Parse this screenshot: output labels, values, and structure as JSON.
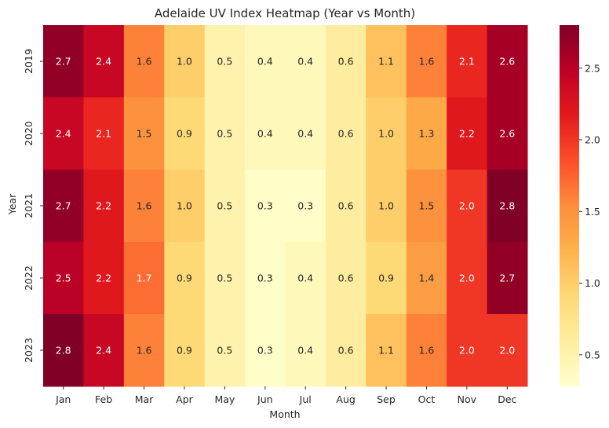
{
  "chart_data": {
    "type": "heatmap",
    "title": "Adelaide UV Index Heatmap (Year vs Month)",
    "xlabel": "Month",
    "ylabel": "Year",
    "x_categories": [
      "Jan",
      "Feb",
      "Mar",
      "Apr",
      "May",
      "Jun",
      "Jul",
      "Aug",
      "Sep",
      "Oct",
      "Nov",
      "Dec"
    ],
    "y_categories": [
      "2019",
      "2020",
      "2021",
      "2022",
      "2023"
    ],
    "values": [
      [
        2.7,
        2.4,
        1.6,
        1.0,
        0.5,
        0.4,
        0.4,
        0.6,
        1.1,
        1.6,
        2.1,
        2.6
      ],
      [
        2.4,
        2.1,
        1.5,
        0.9,
        0.5,
        0.4,
        0.4,
        0.6,
        1.0,
        1.3,
        2.2,
        2.6
      ],
      [
        2.7,
        2.2,
        1.6,
        1.0,
        0.5,
        0.3,
        0.3,
        0.6,
        1.0,
        1.5,
        2.0,
        2.8
      ],
      [
        2.5,
        2.2,
        1.7,
        0.9,
        0.5,
        0.3,
        0.4,
        0.6,
        0.9,
        1.4,
        2.0,
        2.7
      ],
      [
        2.8,
        2.4,
        1.6,
        0.9,
        0.5,
        0.3,
        0.4,
        0.6,
        1.1,
        1.6,
        2.0,
        2.0
      ]
    ],
    "value_labels": [
      [
        "2.7",
        "2.4",
        "1.6",
        "1.0",
        "0.5",
        "0.4",
        "0.4",
        "0.6",
        "1.1",
        "1.6",
        "2.1",
        "2.6"
      ],
      [
        "2.4",
        "2.1",
        "1.5",
        "0.9",
        "0.5",
        "0.4",
        "0.4",
        "0.6",
        "1.0",
        "1.3",
        "2.2",
        "2.6"
      ],
      [
        "2.7",
        "2.2",
        "1.6",
        "1.0",
        "0.5",
        "0.3",
        "0.3",
        "0.6",
        "1.0",
        "1.5",
        "2.0",
        "2.8"
      ],
      [
        "2.5",
        "2.2",
        "1.7",
        "0.9",
        "0.5",
        "0.3",
        "0.4",
        "0.6",
        "0.9",
        "1.4",
        "2.0",
        "2.7"
      ],
      [
        "2.8",
        "2.4",
        "1.6",
        "0.9",
        "0.5",
        "0.3",
        "0.4",
        "0.6",
        "1.1",
        "1.6",
        "2.0",
        "2.0"
      ]
    ],
    "colormap": "YlOrRd",
    "color_range": [
      0.28,
      2.8
    ],
    "colorbar_ticks": [
      0.5,
      1.0,
      1.5,
      2.0,
      2.5
    ],
    "colorbar_tick_labels": [
      "0.5",
      "1.0",
      "1.5",
      "2.0",
      "2.5"
    ],
    "grid": false,
    "legend": "colorbar-right"
  }
}
